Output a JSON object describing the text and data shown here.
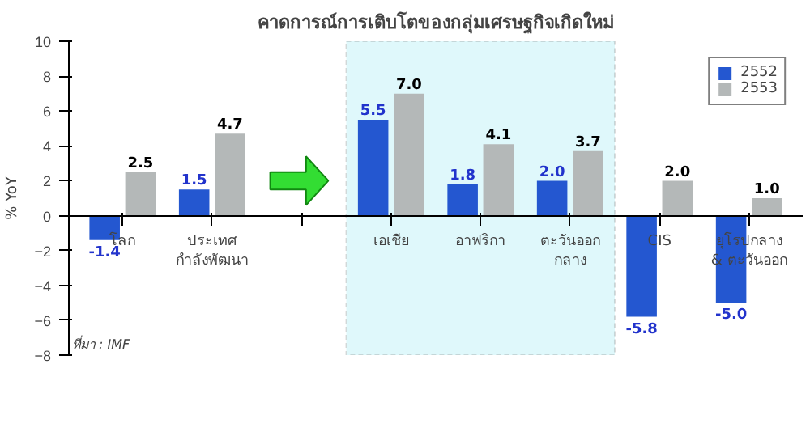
{
  "chart_data": {
    "type": "bar",
    "title": "คาดการณ์การเติบโตของกลุ่มเศรษฐกิจเกิดใหม่",
    "ylabel": "% YoY",
    "categories": [
      "โลก",
      "ประเทศ\nกำลังพัฒนา",
      null,
      "เอเชีย",
      "อาฟริกา",
      "ตะวันออก\nกลาง",
      "CIS",
      "ยุโรปกลาง\n& ตะวันออก"
    ],
    "series": [
      {
        "name": "2552",
        "color": "#2457d0",
        "values": [
          -1.4,
          1.5,
          null,
          5.5,
          1.8,
          2.0,
          -5.8,
          -5.0
        ],
        "value_labels": [
          "-1.4",
          "1.5",
          null,
          "5.5",
          "1.8",
          "2.0",
          "-5.8",
          "-5.0"
        ]
      },
      {
        "name": "2553",
        "color": "#b4b8b8",
        "values": [
          2.5,
          4.7,
          null,
          7.0,
          4.1,
          3.7,
          2.0,
          1.0
        ],
        "value_labels": [
          "2.5",
          "4.7",
          null,
          "7.0",
          "4.1",
          "3.7",
          "2.0",
          "1.0"
        ]
      }
    ],
    "ylim": [
      -8,
      10
    ],
    "yticks": [
      -8,
      -6,
      -4,
      -2,
      0,
      2,
      4,
      6,
      8,
      10
    ],
    "grid": false,
    "legend": "top right",
    "bands": [
      {
        "axis": "x",
        "from": "เอเชีย",
        "to": "ตะวันออก\nกลาง",
        "color": "#dff8fb"
      }
    ],
    "annotations": [
      "ที่มา : IMF"
    ]
  }
}
